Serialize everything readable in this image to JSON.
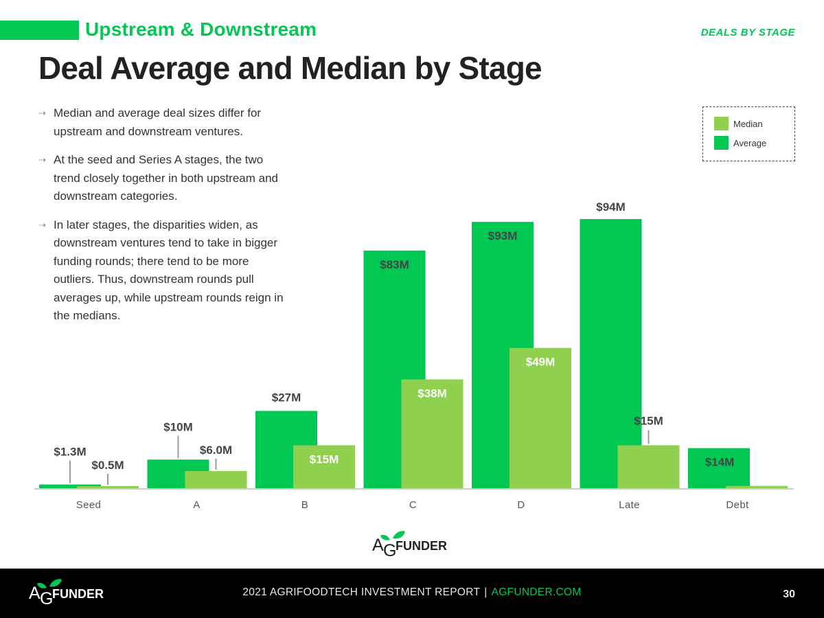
{
  "header": {
    "subtitle": "Upstream & Downstream",
    "section_tag": "DEALS BY STAGE",
    "title": "Deal Average and Median by Stage"
  },
  "bullets": [
    "Median and average deal sizes differ for upstream and downstream ventures.",
    "At the seed and Series A stages, the two trend closely together in both upstream and downstream categories.",
    "In later stages, the disparities widen, as downstream ventures tend to take in bigger funding rounds; there tend to be more outliers. Thus, downstream rounds pull averages up, while upstream rounds reign in the medians."
  ],
  "bullet_icon": "dotted-arrow-icon",
  "legend": {
    "median_label": "Median",
    "average_label": "Average"
  },
  "colors": {
    "average": "#00c853",
    "median": "#8fd14f",
    "brand": "#00c853",
    "text": "#222222",
    "footer_bg": "#000000"
  },
  "chart_data": {
    "type": "bar",
    "title": "Deal Average and Median by Stage",
    "xlabel": "",
    "ylabel": "",
    "ylim": [
      0,
      100
    ],
    "grid": false,
    "legend_position": "top-right",
    "categories": [
      "Seed",
      "A",
      "B",
      "C",
      "D",
      "Late",
      "Debt"
    ],
    "series": [
      {
        "name": "Average",
        "color": "#00c853",
        "values": [
          1.3,
          10,
          27,
          83,
          93,
          94,
          14
        ],
        "labels": [
          "$1.3M",
          "$10M",
          "$27M",
          "$83M",
          "$93M",
          "$94M",
          "$14M"
        ]
      },
      {
        "name": "Median",
        "color": "#8fd14f",
        "values": [
          0.5,
          6.0,
          15,
          38,
          49,
          15,
          0.8
        ],
        "labels": [
          "$0.5M",
          "$6.0M",
          "$15M",
          "$38M",
          "$49M",
          "$15M",
          ""
        ]
      }
    ]
  },
  "logo": {
    "text": "AGFUNDER",
    "icon": "leaf-icon"
  },
  "footer": {
    "report": "2021 AGRIFOODTECH INVESTMENT REPORT",
    "separator": "|",
    "url": "AGFUNDER.COM",
    "page_number": "30"
  }
}
